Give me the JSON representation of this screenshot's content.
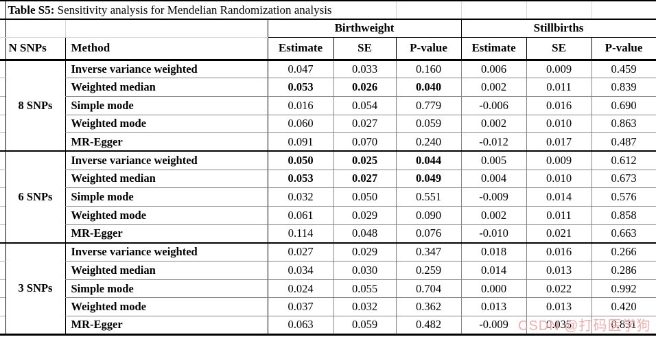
{
  "title": {
    "label": "Table S5:",
    "text": "Sensitivity analysis for Mendelian Randomization analysis"
  },
  "columns": {
    "n_snps": "N SNPs",
    "method": "Method",
    "outcome_groups": [
      {
        "label": "Birthweight",
        "sub": [
          "Estimate",
          "SE",
          "P-value"
        ]
      },
      {
        "label": "Stillbirths",
        "sub": [
          "Estimate",
          "SE",
          "P-value"
        ]
      }
    ]
  },
  "groups": [
    {
      "label": "8 SNPs",
      "rows": [
        {
          "method": "Inverse variance weighted",
          "values": [
            "0.047",
            "0.033",
            "0.160",
            "0.006",
            "0.009",
            "0.459"
          ],
          "bold": []
        },
        {
          "method": "Weighted median",
          "values": [
            "0.053",
            "0.026",
            "0.040",
            "0.002",
            "0.011",
            "0.839"
          ],
          "bold": [
            0,
            1,
            2
          ]
        },
        {
          "method": "Simple mode",
          "values": [
            "0.016",
            "0.054",
            "0.779",
            "-0.006",
            "0.016",
            "0.690"
          ],
          "bold": []
        },
        {
          "method": "Weighted mode",
          "values": [
            "0.060",
            "0.027",
            "0.059",
            "0.002",
            "0.010",
            "0.863"
          ],
          "bold": []
        },
        {
          "method": "MR-Egger",
          "values": [
            "0.091",
            "0.070",
            "0.240",
            "-0.012",
            "0.017",
            "0.487"
          ],
          "bold": []
        }
      ]
    },
    {
      "label": "6 SNPs",
      "rows": [
        {
          "method": "Inverse variance weighted",
          "values": [
            "0.050",
            "0.025",
            "0.044",
            "0.005",
            "0.009",
            "0.612"
          ],
          "bold": [
            0,
            1,
            2
          ]
        },
        {
          "method": "Weighted median",
          "values": [
            "0.053",
            "0.027",
            "0.049",
            "0.004",
            "0.010",
            "0.673"
          ],
          "bold": [
            0,
            1,
            2
          ]
        },
        {
          "method": "Simple mode",
          "values": [
            "0.032",
            "0.050",
            "0.551",
            "-0.009",
            "0.014",
            "0.576"
          ],
          "bold": []
        },
        {
          "method": "Weighted mode",
          "values": [
            "0.061",
            "0.029",
            "0.090",
            "0.002",
            "0.011",
            "0.858"
          ],
          "bold": []
        },
        {
          "method": "MR-Egger",
          "values": [
            "0.114",
            "0.048",
            "0.076",
            "-0.010",
            "0.021",
            "0.663"
          ],
          "bold": []
        }
      ]
    },
    {
      "label": "3 SNPs",
      "rows": [
        {
          "method": "Inverse variance weighted",
          "values": [
            "0.027",
            "0.029",
            "0.347",
            "0.018",
            "0.016",
            "0.266"
          ],
          "bold": []
        },
        {
          "method": "Weighted median",
          "values": [
            "0.034",
            "0.030",
            "0.259",
            "0.014",
            "0.013",
            "0.286"
          ],
          "bold": []
        },
        {
          "method": "Simple mode",
          "values": [
            "0.024",
            "0.055",
            "0.704",
            "0.000",
            "0.022",
            "0.992"
          ],
          "bold": []
        },
        {
          "method": "Weighted mode",
          "values": [
            "0.037",
            "0.032",
            "0.362",
            "0.013",
            "0.013",
            "0.420"
          ],
          "bold": []
        },
        {
          "method": "MR-Egger",
          "values": [
            "0.063",
            "0.059",
            "0.482",
            "-0.009",
            "0.035",
            "0.831"
          ],
          "bold": []
        }
      ]
    }
  ],
  "watermark": {
    "text": "CSDN @打码医学狗",
    "color": "#F0A6A6"
  },
  "colors": {
    "thick_line": "#000000",
    "grid_gray": "#848484",
    "light_grid": "#D6D6D6",
    "background": "#FFFFFF",
    "watermark_pink": "#F0A6A6"
  }
}
